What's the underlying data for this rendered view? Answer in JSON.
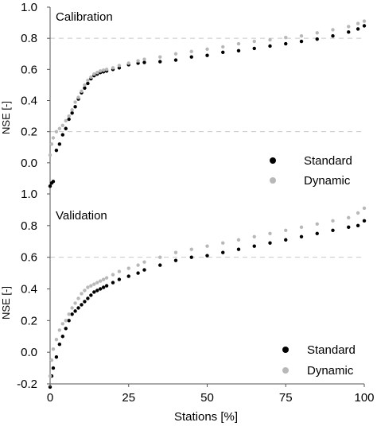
{
  "figure": {
    "shared_xlabel": "Stations [%]",
    "shared_xticks": [
      "0",
      "25",
      "50",
      "75",
      "100"
    ]
  },
  "colors": {
    "Standard": "#000000",
    "Dynamic": "#b8b8b8",
    "axis": "#555555",
    "grid": "#c8c8c8"
  },
  "chart_data": [
    {
      "type": "scatter",
      "title": "Calibration",
      "ylabel": "NSE [-]",
      "xlabel": "",
      "xlim": [
        0,
        100
      ],
      "ylim": [
        -0.2,
        1.0
      ],
      "yticks": [
        0.0,
        0.2,
        0.4,
        0.6,
        0.8,
        1.0
      ],
      "ytick_labels": [
        "0.0",
        "0.2",
        "0.4",
        "0.6",
        "0.8",
        "1.0"
      ],
      "gridlines": [
        0.2,
        0.8
      ],
      "legend_position": "bottom-right",
      "series": [
        {
          "name": "Standard",
          "color": "#000000",
          "x": [
            0,
            0.5,
            1,
            2,
            3,
            4,
            5,
            6,
            7,
            8,
            9,
            10,
            11,
            12,
            13,
            14,
            15,
            16,
            17,
            18,
            20,
            22,
            25,
            28,
            30,
            35,
            40,
            45,
            50,
            55,
            60,
            65,
            70,
            75,
            80,
            85,
            90,
            95,
            98,
            100
          ],
          "y": [
            -0.15,
            -0.13,
            -0.12,
            0.08,
            0.12,
            0.18,
            0.22,
            0.28,
            0.32,
            0.36,
            0.41,
            0.45,
            0.48,
            0.51,
            0.54,
            0.56,
            0.57,
            0.58,
            0.585,
            0.59,
            0.6,
            0.61,
            0.63,
            0.64,
            0.645,
            0.65,
            0.66,
            0.68,
            0.69,
            0.71,
            0.72,
            0.735,
            0.75,
            0.765,
            0.78,
            0.795,
            0.815,
            0.84,
            0.86,
            0.88
          ]
        },
        {
          "name": "Dynamic",
          "color": "#b8b8b8",
          "x": [
            0,
            0.5,
            1,
            2,
            3,
            4,
            5,
            6,
            7,
            8,
            9,
            10,
            11,
            12,
            13,
            14,
            15,
            16,
            17,
            18,
            20,
            22,
            25,
            28,
            30,
            35,
            40,
            45,
            50,
            55,
            60,
            65,
            70,
            75,
            80,
            85,
            90,
            95,
            98,
            100
          ],
          "y": [
            0.05,
            0.12,
            0.16,
            0.2,
            0.22,
            0.24,
            0.27,
            0.3,
            0.34,
            0.39,
            0.42,
            0.46,
            0.5,
            0.53,
            0.55,
            0.57,
            0.58,
            0.59,
            0.595,
            0.6,
            0.61,
            0.625,
            0.64,
            0.655,
            0.665,
            0.68,
            0.7,
            0.715,
            0.73,
            0.745,
            0.765,
            0.78,
            0.79,
            0.805,
            0.815,
            0.835,
            0.855,
            0.875,
            0.895,
            0.91
          ]
        }
      ]
    },
    {
      "type": "scatter",
      "title": "Validation",
      "ylabel": "NSE [-]",
      "xlabel": "Stations [%]",
      "xlim": [
        0,
        100
      ],
      "ylim": [
        -0.2,
        1.0
      ],
      "yticks": [
        -0.2,
        0.0,
        0.2,
        0.4,
        0.6,
        0.8,
        1.0
      ],
      "ytick_labels": [
        "-0.2",
        "0.0",
        "0.2",
        "0.4",
        "0.6",
        "0.8",
        "1.0"
      ],
      "gridlines": [
        0.6
      ],
      "legend_position": "bottom-right",
      "series": [
        {
          "name": "Standard",
          "color": "#000000",
          "x": [
            0,
            0.5,
            1,
            2,
            3,
            4,
            5,
            6,
            7,
            8,
            9,
            10,
            11,
            12,
            13,
            14,
            15,
            16,
            17,
            18,
            20,
            22,
            25,
            28,
            30,
            35,
            40,
            45,
            50,
            55,
            60,
            65,
            70,
            75,
            80,
            85,
            90,
            95,
            98,
            100
          ],
          "y": [
            -0.22,
            -0.15,
            -0.1,
            -0.03,
            0.05,
            0.1,
            0.15,
            0.2,
            0.24,
            0.26,
            0.28,
            0.3,
            0.32,
            0.34,
            0.36,
            0.38,
            0.39,
            0.4,
            0.41,
            0.42,
            0.44,
            0.46,
            0.48,
            0.5,
            0.52,
            0.55,
            0.58,
            0.6,
            0.61,
            0.63,
            0.65,
            0.67,
            0.69,
            0.71,
            0.73,
            0.75,
            0.77,
            0.79,
            0.8,
            0.83
          ]
        },
        {
          "name": "Dynamic",
          "color": "#b8b8b8",
          "x": [
            0,
            0.5,
            1,
            2,
            3,
            4,
            5,
            6,
            7,
            8,
            9,
            10,
            11,
            12,
            13,
            14,
            15,
            16,
            17,
            18,
            20,
            22,
            25,
            28,
            30,
            35,
            40,
            45,
            50,
            55,
            60,
            65,
            70,
            75,
            80,
            85,
            90,
            95,
            98,
            100
          ],
          "y": [
            -0.15,
            -0.05,
            0.02,
            0.08,
            0.14,
            0.18,
            0.2,
            0.24,
            0.28,
            0.31,
            0.34,
            0.37,
            0.39,
            0.41,
            0.42,
            0.43,
            0.44,
            0.45,
            0.46,
            0.47,
            0.49,
            0.51,
            0.53,
            0.55,
            0.57,
            0.6,
            0.63,
            0.65,
            0.67,
            0.69,
            0.71,
            0.73,
            0.75,
            0.77,
            0.79,
            0.81,
            0.83,
            0.85,
            0.88,
            0.91
          ]
        }
      ]
    }
  ]
}
